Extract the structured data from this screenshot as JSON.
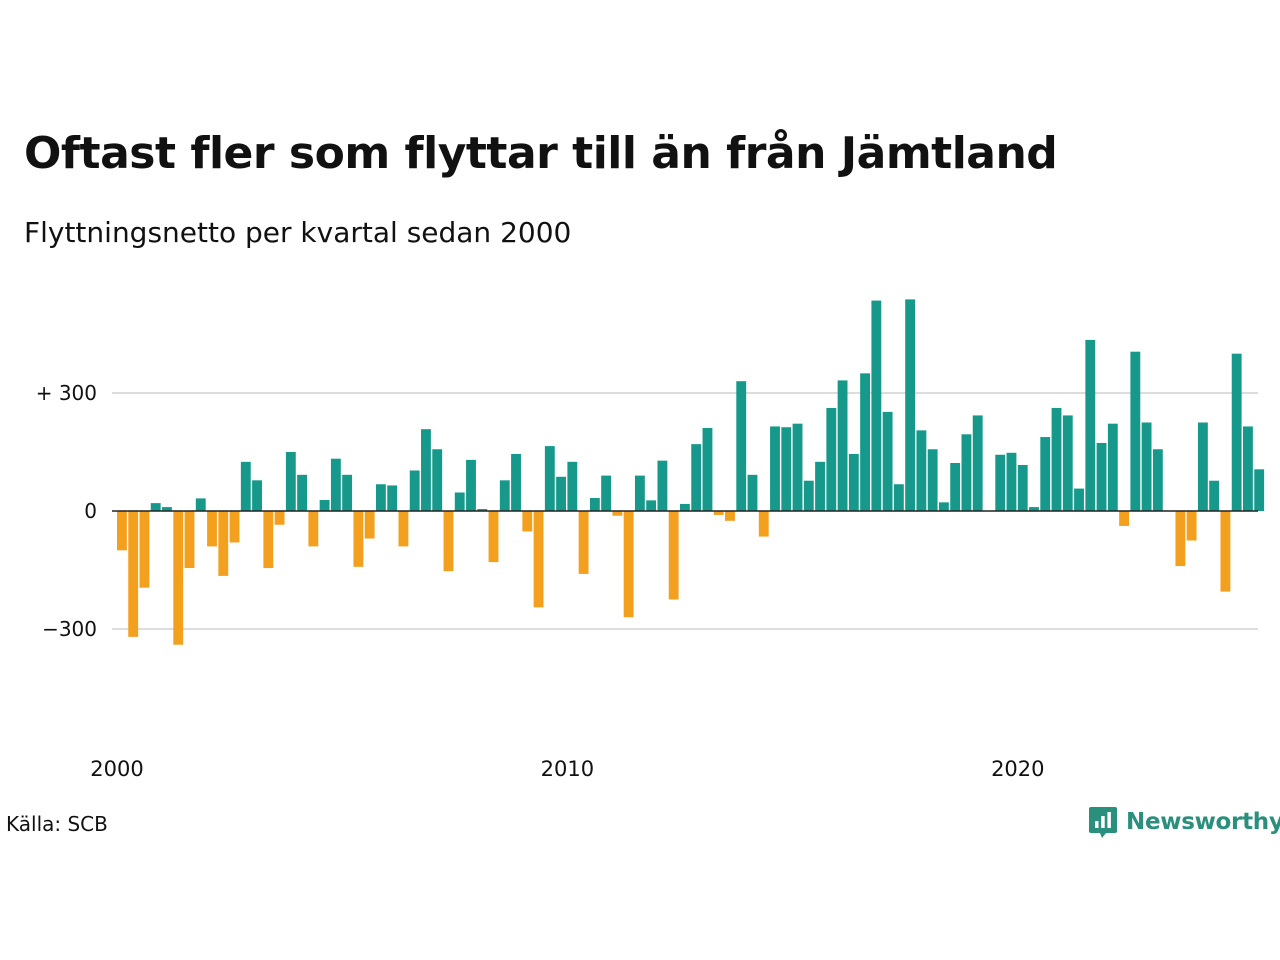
{
  "header": {
    "title": "Oftast fler som flyttar till än från Jämtland",
    "subtitle": "Flyttningsnetto per kvartal sedan 2000"
  },
  "footer": {
    "source": "Källa: SCB",
    "brand": "Newsworthy",
    "brand_icon": "bar-chart-bubble-icon"
  },
  "colors": {
    "positive": "#16998a",
    "negative": "#f4a01f",
    "grid": "#dddddd",
    "axis": "#222222",
    "brand": "#2a8f7d"
  },
  "chart_data": {
    "type": "bar",
    "x_start": "2000 Q1",
    "x_tick_labels": [
      "2000",
      "2010",
      "2020"
    ],
    "y_ticks": [
      -300,
      0,
      300
    ],
    "y_tick_labels": [
      "−300",
      "0",
      "+ 300"
    ],
    "ylim": [
      -450,
      550
    ],
    "values": [
      -100,
      -320,
      -195,
      20,
      10,
      -340,
      -145,
      32,
      -90,
      -165,
      -80,
      125,
      78,
      -145,
      -35,
      150,
      92,
      -90,
      28,
      133,
      92,
      -142,
      -70,
      68,
      65,
      -90,
      103,
      208,
      157,
      -153,
      47,
      130,
      5,
      -130,
      78,
      145,
      -52,
      -245,
      165,
      87,
      125,
      -160,
      33,
      90,
      -12,
      -270,
      90,
      27,
      128,
      -225,
      18,
      170,
      211,
      -10,
      -25,
      330,
      92,
      -65,
      215,
      213,
      222,
      77,
      125,
      262,
      332,
      145,
      350,
      535,
      252,
      68,
      538,
      205,
      157,
      22,
      122,
      195,
      243,
      0,
      143,
      148,
      117,
      10,
      188,
      262,
      243,
      57,
      435,
      173,
      222,
      -38,
      405,
      225,
      157,
      0,
      -140,
      -75,
      225,
      77,
      -205,
      400,
      215,
      106
    ]
  }
}
